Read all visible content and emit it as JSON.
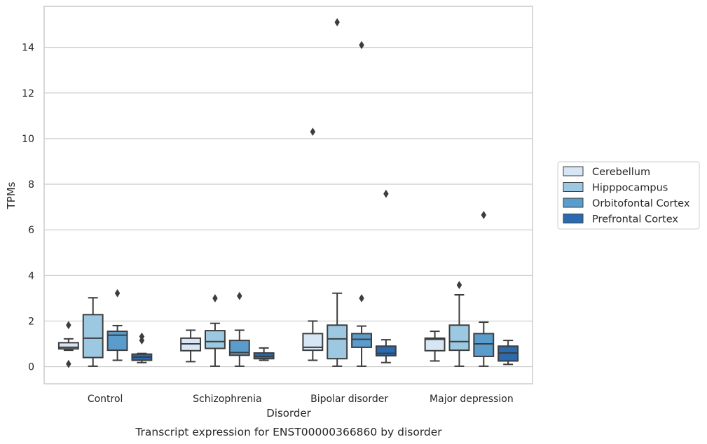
{
  "chart_data": {
    "type": "box",
    "xlabel": "Disorder",
    "ylabel": "TPMs",
    "caption": "Transcript expression for ENST00000366860 by disorder",
    "ylim": [
      -0.75,
      15.8
    ],
    "yticks": [
      0,
      2,
      4,
      6,
      8,
      10,
      12,
      14
    ],
    "grid": "horizontal",
    "legend_position": "right",
    "categories": [
      "Control",
      "Schizophrenia",
      "Bipolar disorder",
      "Major depression"
    ],
    "series": [
      {
        "name": "Cerebellum",
        "color": "#d6e6f4",
        "boxes": [
          {
            "whislo": 0.72,
            "q1": 0.78,
            "med": 0.85,
            "q3": 1.05,
            "whishi": 1.22,
            "fliers": [
              1.82,
              0.12
            ]
          },
          {
            "whislo": 0.22,
            "q1": 0.7,
            "med": 1.0,
            "q3": 1.25,
            "whishi": 1.6,
            "fliers": []
          },
          {
            "whislo": 0.28,
            "q1": 0.72,
            "med": 0.85,
            "q3": 1.45,
            "whishi": 2.0,
            "fliers": [
              10.3
            ]
          },
          {
            "whislo": 0.25,
            "q1": 0.7,
            "med": 1.2,
            "q3": 1.25,
            "whishi": 1.55,
            "fliers": []
          }
        ]
      },
      {
        "name": "Hipppocampus",
        "color": "#9cc9e1",
        "boxes": [
          {
            "whislo": 0.02,
            "q1": 0.4,
            "med": 1.25,
            "q3": 2.28,
            "whishi": 3.02,
            "fliers": []
          },
          {
            "whislo": 0.02,
            "q1": 0.8,
            "med": 1.1,
            "q3": 1.58,
            "whishi": 1.9,
            "fliers": [
              3.0
            ]
          },
          {
            "whislo": 0.02,
            "q1": 0.35,
            "med": 1.22,
            "q3": 1.82,
            "whishi": 3.22,
            "fliers": [
              15.1
            ]
          },
          {
            "whislo": 0.02,
            "q1": 0.72,
            "med": 1.1,
            "q3": 1.82,
            "whishi": 3.15,
            "fliers": [
              3.58
            ]
          }
        ]
      },
      {
        "name": "Orbitofontal Cortex",
        "color": "#5a9dcc",
        "boxes": [
          {
            "whislo": 0.28,
            "q1": 0.72,
            "med": 1.38,
            "q3": 1.55,
            "whishi": 1.8,
            "fliers": [
              3.22
            ]
          },
          {
            "whislo": 0.02,
            "q1": 0.5,
            "med": 0.62,
            "q3": 1.15,
            "whishi": 1.6,
            "fliers": [
              3.1
            ]
          },
          {
            "whislo": 0.02,
            "q1": 0.85,
            "med": 1.2,
            "q3": 1.45,
            "whishi": 1.78,
            "fliers": [
              14.1,
              3.0
            ]
          },
          {
            "whislo": 0.02,
            "q1": 0.45,
            "med": 1.0,
            "q3": 1.45,
            "whishi": 1.95,
            "fliers": [
              6.65
            ]
          }
        ]
      },
      {
        "name": "Prefrontal Cortex",
        "color": "#2a6aad",
        "boxes": [
          {
            "whislo": 0.18,
            "q1": 0.28,
            "med": 0.42,
            "q3": 0.55,
            "whishi": 0.58,
            "fliers": [
              1.32,
              1.15
            ]
          },
          {
            "whislo": 0.28,
            "q1": 0.35,
            "med": 0.45,
            "q3": 0.6,
            "whishi": 0.82,
            "fliers": []
          },
          {
            "whislo": 0.18,
            "q1": 0.48,
            "med": 0.58,
            "q3": 0.9,
            "whishi": 1.18,
            "fliers": [
              7.58
            ]
          },
          {
            "whislo": 0.1,
            "q1": 0.25,
            "med": 0.6,
            "q3": 0.9,
            "whishi": 1.15,
            "fliers": []
          }
        ]
      }
    ]
  }
}
